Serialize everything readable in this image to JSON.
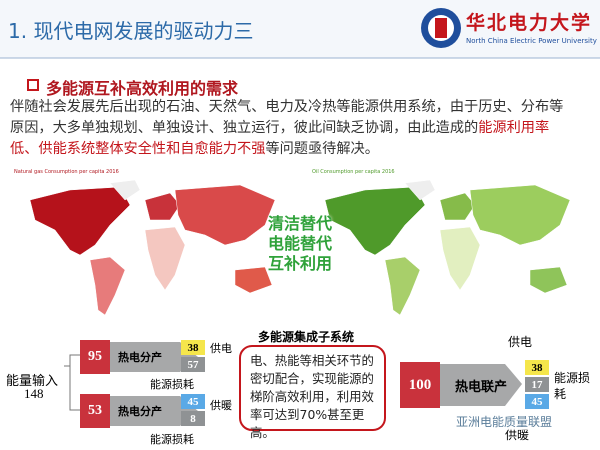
{
  "header": {
    "title": "1. 现代电网发展的驱动力三",
    "logo_cn": "华北电力大学",
    "logo_en": "North China Electric Power University"
  },
  "section": {
    "heading": "多能源互补高效利用的需求",
    "paragraph": [
      "伴随社会发展先后出现的石油、天然气、电力及冷热等能源供用系统，由于历史、分布等原因，大多单独规划、单独设计、独立运行，彼此间缺乏协调，由此造成的",
      "能源利用率低、供能系统整体安全性和自愈能力不强",
      "等问题亟待解决。"
    ]
  },
  "maps": {
    "left_title": "Natural gas Consumption per capita 2016",
    "right_title": "Oil Consumption per capita 2016",
    "center": [
      "清洁替代",
      "电能替代",
      "互补利用"
    ]
  },
  "separate": {
    "input_label": "能量输入",
    "input_total": 148,
    "power": {
      "input": 95,
      "process": "热电分产",
      "output": 38,
      "loss": 57,
      "output_label": "供电",
      "loss_label": "能源损耗"
    },
    "heat": {
      "input": 53,
      "process": "热电分产",
      "output": 45,
      "loss": 8,
      "output_label": "供暖",
      "loss_label": "能源损耗"
    }
  },
  "integrated": {
    "title": "多能源集成子系统",
    "text": "电、热能等相关环节的密切配合，实现能源的梯阶高效利用，利用效率可达到70%甚至更高。"
  },
  "chp": {
    "input": 100,
    "process": "热电联产",
    "power": 38,
    "loss": 17,
    "heat": 45,
    "power_label": "供电",
    "loss_label": "能源损耗",
    "heat_label": "供暖"
  },
  "watermark": "亚洲电能质量联盟"
}
